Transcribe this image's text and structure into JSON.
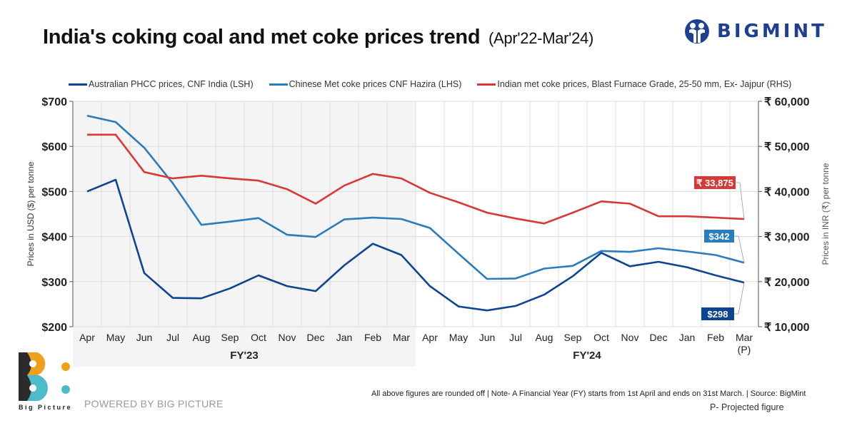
{
  "header": {
    "title": "India's coking coal and met coke prices trend",
    "subtitle": "(Apr'22-Mar'24)",
    "brand": "BIGMINT"
  },
  "colors": {
    "australian": "#0d4590",
    "chinese": "#2a7cbd",
    "indian": "#d93838",
    "shaded_fy23": "#f4f4f4",
    "grid": "#dddddd"
  },
  "chart_data": {
    "type": "line",
    "title": "India's coking coal and met coke prices trend (Apr'22-Mar'24)",
    "x": [
      "Apr",
      "May",
      "Jun",
      "Jul",
      "Aug",
      "Sep",
      "Oct",
      "Nov",
      "Dec",
      "Jan",
      "Feb",
      "Mar",
      "Apr",
      "May",
      "Jun",
      "Jul",
      "Aug",
      "Sep",
      "Oct",
      "Nov",
      "Dec",
      "Jan",
      "Feb",
      "Mar"
    ],
    "x_last_suffix": "(P)",
    "groups": [
      {
        "label": "FY'23",
        "start": 0,
        "end": 11,
        "shaded": true
      },
      {
        "label": "FY'24",
        "start": 12,
        "end": 23,
        "shaded": false
      }
    ],
    "ylabel": "Prices in USD ($) per tonne",
    "ylabel_right": "Prices in INR (₹) per tonne",
    "ylim": [
      200,
      700
    ],
    "ylim_right": [
      10000,
      60000
    ],
    "yticks": [
      "$700",
      "$600",
      "$500",
      "$400",
      "$300",
      "$200"
    ],
    "yticks_right": [
      "₹ 60,000",
      "₹ 50,000",
      "₹ 40,000",
      "₹ 30,000",
      "₹ 20,000",
      "₹ 10,000"
    ],
    "grid": true,
    "legend_position": "top",
    "series": [
      {
        "name": "Australian PHCC prices, CNF India (LSH)",
        "axis": "left",
        "color_key": "australian",
        "values": [
          500,
          526,
          319,
          264,
          263,
          285,
          314,
          290,
          279,
          336,
          384,
          359,
          290,
          245,
          236,
          246,
          271,
          312,
          364,
          334,
          344,
          332,
          314,
          298
        ],
        "end_label": "$298"
      },
      {
        "name": "Chinese Met coke prices CNF Hazira (LHS)",
        "axis": "left",
        "color_key": "chinese",
        "values": [
          668,
          654,
          597,
          518,
          426,
          433,
          441,
          404,
          399,
          438,
          442,
          439,
          419,
          362,
          306,
          307,
          329,
          335,
          368,
          366,
          374,
          367,
          359,
          342
        ],
        "end_label": "$342"
      },
      {
        "name": "Indian met coke prices, Blast Furnace Grade, 25-50 mm, Ex- Jajpur (RHS)",
        "axis": "right",
        "color_key": "indian",
        "values": [
          52600,
          52600,
          44300,
          42900,
          43500,
          42900,
          42400,
          40500,
          37300,
          41300,
          43900,
          42900,
          39700,
          37600,
          35300,
          34000,
          32900,
          35300,
          37800,
          37300,
          34500,
          34500,
          34200,
          33875
        ],
        "end_label": "₹ 33,875"
      }
    ]
  },
  "footer": {
    "note": "All above figures are rounded off | Note- A Financial Year (FY) starts from 1st April and ends on 31st March. | Source: BigMint",
    "projected": "P- Projected figure",
    "powered_by": "POWERED BY BIG PICTURE",
    "bp_logo_text": "Big Picture"
  }
}
